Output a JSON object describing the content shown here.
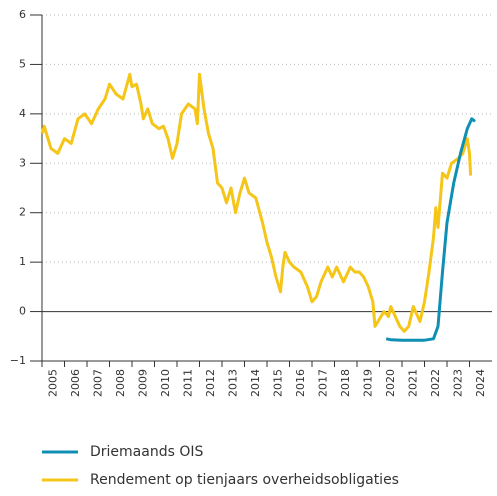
{
  "chart_data": {
    "type": "line",
    "xlim": [
      2005,
      2025
    ],
    "xticks": [
      {
        "value": 2005,
        "label": "2005"
      },
      {
        "value": 2006,
        "label": "2006"
      },
      {
        "value": 2007,
        "label": "2007"
      },
      {
        "value": 2008,
        "label": "2008"
      },
      {
        "value": 2009,
        "label": "2009"
      },
      {
        "value": 2010,
        "label": "2010"
      },
      {
        "value": 2011,
        "label": "2011"
      },
      {
        "value": 2012,
        "label": "2012"
      },
      {
        "value": 2013,
        "label": "2013"
      },
      {
        "value": 2014,
        "label": "2014"
      },
      {
        "value": 2015,
        "label": "2015"
      },
      {
        "value": 2016,
        "label": "2016"
      },
      {
        "value": 2017,
        "label": "2017"
      },
      {
        "value": 2018,
        "label": "2018"
      },
      {
        "value": 2019,
        "label": "2019"
      },
      {
        "value": 2020,
        "label": "2020"
      },
      {
        "value": 2021,
        "label": "2021"
      },
      {
        "value": 2022,
        "label": "2022"
      },
      {
        "value": 2023,
        "label": "2023"
      },
      {
        "value": 2024,
        "label": "2024"
      }
    ],
    "ylim": [
      -1,
      6
    ],
    "yticks": [
      -1,
      0,
      1,
      2,
      3,
      4,
      5,
      6
    ],
    "yticks_labels": [
      "−1",
      "0",
      "1",
      "2",
      "3",
      "4",
      "5",
      "6"
    ],
    "grid": true,
    "series": [
      {
        "name": "Driemaands OIS",
        "color": "#0f8fb4",
        "x": [
          2020.3,
          2020.5,
          2021.0,
          2021.5,
          2022.0,
          2022.4,
          2022.6,
          2022.8,
          2023.0,
          2023.3,
          2023.6,
          2023.9,
          2024.1,
          2024.25
        ],
        "values": [
          -0.55,
          -0.57,
          -0.58,
          -0.58,
          -0.58,
          -0.55,
          -0.3,
          0.8,
          1.8,
          2.6,
          3.2,
          3.7,
          3.9,
          3.85
        ]
      },
      {
        "name": "Rendement op tienjaars overheidsobligaties",
        "color": "#f5c518",
        "x": [
          2005.0,
          2005.1,
          2005.4,
          2005.7,
          2006.0,
          2006.3,
          2006.6,
          2006.9,
          2007.2,
          2007.5,
          2007.8,
          2008.0,
          2008.3,
          2008.6,
          2008.9,
          2009.0,
          2009.2,
          2009.4,
          2009.5,
          2009.7,
          2009.9,
          2010.2,
          2010.4,
          2010.6,
          2010.8,
          2011.0,
          2011.2,
          2011.5,
          2011.8,
          2011.9,
          2012.0,
          2012.2,
          2012.4,
          2012.6,
          2012.8,
          2013.0,
          2013.2,
          2013.4,
          2013.6,
          2013.8,
          2014.0,
          2014.2,
          2014.5,
          2014.8,
          2015.0,
          2015.2,
          2015.4,
          2015.6,
          2015.7,
          2015.8,
          2016.0,
          2016.2,
          2016.5,
          2016.8,
          2017.0,
          2017.2,
          2017.4,
          2017.7,
          2017.9,
          2018.1,
          2018.4,
          2018.7,
          2018.9,
          2019.1,
          2019.3,
          2019.5,
          2019.7,
          2019.8,
          2020.0,
          2020.2,
          2020.4,
          2020.5,
          2020.7,
          2020.9,
          2021.1,
          2021.3,
          2021.5,
          2021.6,
          2021.8,
          2022.0,
          2022.2,
          2022.4,
          2022.5,
          2022.6,
          2022.8,
          2023.0,
          2023.2,
          2023.5,
          2023.7,
          2023.9,
          2024.0,
          2024.05
        ],
        "values": [
          3.6,
          3.75,
          3.3,
          3.2,
          3.5,
          3.4,
          3.9,
          4.0,
          3.8,
          4.1,
          4.3,
          4.6,
          4.4,
          4.3,
          4.8,
          4.55,
          4.6,
          4.2,
          3.9,
          4.1,
          3.8,
          3.7,
          3.75,
          3.5,
          3.1,
          3.4,
          4.0,
          4.2,
          4.1,
          3.8,
          4.8,
          4.1,
          3.6,
          3.3,
          2.6,
          2.5,
          2.2,
          2.5,
          2.0,
          2.4,
          2.7,
          2.4,
          2.3,
          1.8,
          1.4,
          1.1,
          0.7,
          0.4,
          0.9,
          1.2,
          1.0,
          0.9,
          0.8,
          0.5,
          0.2,
          0.3,
          0.6,
          0.9,
          0.7,
          0.9,
          0.6,
          0.9,
          0.8,
          0.8,
          0.7,
          0.5,
          0.2,
          -0.3,
          -0.15,
          0.0,
          -0.1,
          0.1,
          -0.1,
          -0.3,
          -0.4,
          -0.3,
          0.1,
          0.0,
          -0.2,
          0.2,
          0.8,
          1.5,
          2.1,
          1.7,
          2.8,
          2.7,
          3.0,
          3.1,
          3.2,
          3.5,
          3.2,
          2.75
        ]
      }
    ]
  }
}
